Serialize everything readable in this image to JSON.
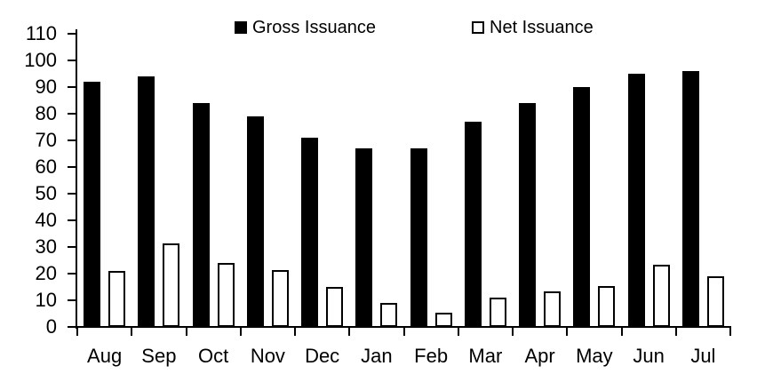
{
  "chart_data": {
    "type": "bar",
    "title": "",
    "xlabel": "",
    "ylabel": "",
    "categories": [
      "Aug",
      "Sep",
      "Oct",
      "Nov",
      "Dec",
      "Jan",
      "Feb",
      "Mar",
      "Apr",
      "May",
      "Jun",
      "Jul"
    ],
    "series": [
      {
        "name": "Gross Issuance",
        "values": [
          92,
          94,
          84,
          79,
          71,
          67,
          67,
          77,
          84,
          90,
          95,
          96
        ],
        "fill": "#000000"
      },
      {
        "name": "Net Issuance",
        "values": [
          21,
          31.5,
          24,
          21.5,
          15,
          9,
          5.5,
          11,
          13.5,
          15.5,
          23.5,
          19
        ],
        "fill": "#ffffff",
        "border": "#000000"
      }
    ],
    "ylim": [
      0,
      110
    ],
    "ytick_step": 10,
    "grid": false,
    "legend_position": "top",
    "axis_color": "#000000",
    "background": "#ffffff"
  }
}
